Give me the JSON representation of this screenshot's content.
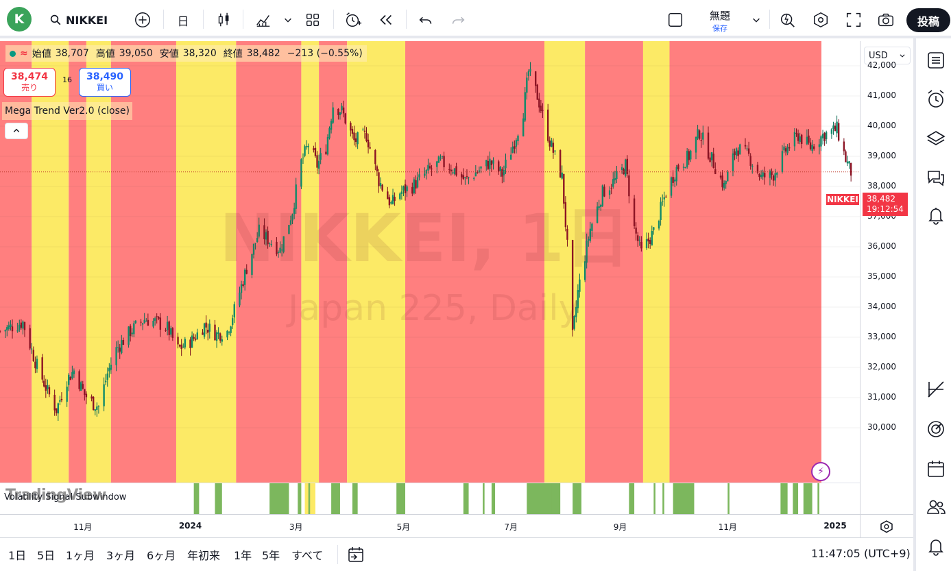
{
  "topbar": {
    "avatar_letter": "K",
    "symbol": "NIKKEI",
    "interval": "日",
    "save_title": "無題",
    "save_sub": "保存",
    "publish": "投稿"
  },
  "legend": {
    "open_label": "始値",
    "open": "38,707",
    "high_label": "高値",
    "high": "39,050",
    "low_label": "安値",
    "low": "38,320",
    "close_label": "終値",
    "close": "38,482",
    "change": "−213 (−0.55%)",
    "sell_price": "38,474",
    "sell_label": "売り",
    "buy_price": "38,490",
    "buy_label": "買い",
    "spread": "16",
    "indicator": "Mega Trend Ver2.0 (close)"
  },
  "watermark": {
    "line1": "NIKKEI, 1日",
    "line2": "Japan 225, Daily"
  },
  "subpane": {
    "title": "Volatility Signal Subwindow",
    "logo": "TradingView"
  },
  "price_axis": {
    "currency": "USD",
    "ticks": [
      "42,000",
      "41,000",
      "40,000",
      "39,000",
      "38,000",
      "37,000",
      "36,000",
      "35,000",
      "34,000",
      "33,000",
      "32,000",
      "31,000",
      "30,000"
    ],
    "symbol_tag": "NIKKEI",
    "last_price": "38,482",
    "countdown": "19:12:54"
  },
  "time_axis": {
    "ticks": [
      {
        "label": "11月",
        "bold": false
      },
      {
        "label": "2024",
        "bold": true
      },
      {
        "label": "3月",
        "bold": false
      },
      {
        "label": "5月",
        "bold": false
      },
      {
        "label": "7月",
        "bold": false
      },
      {
        "label": "9月",
        "bold": false
      },
      {
        "label": "11月",
        "bold": false
      },
      {
        "label": "2025",
        "bold": true
      }
    ]
  },
  "bottombar": {
    "ranges": [
      "1日",
      "5日",
      "1ヶ月",
      "3ヶ月",
      "6ヶ月",
      "年初来",
      "1年",
      "5年",
      "すべて"
    ],
    "clock": "11:47:05 (UTC+9)"
  },
  "colors": {
    "red_zone": "#ff7f7f",
    "yellow_zone": "#fcea66",
    "signal_green": "#7cb75d",
    "up": "#089981",
    "down": "#f23645"
  },
  "chart_data": {
    "type": "candlestick",
    "symbol": "NIKKEI",
    "xlim": [
      "2023-09-15",
      "2025-01-15"
    ],
    "ylim": [
      29300,
      43000
    ],
    "zones": [
      {
        "from": "2023-09-15",
        "to": "2023-10-03",
        "color": "red"
      },
      {
        "from": "2023-10-03",
        "to": "2023-10-24",
        "color": "yellow"
      },
      {
        "from": "2023-10-24",
        "to": "2023-11-03",
        "color": "red"
      },
      {
        "from": "2023-11-03",
        "to": "2023-11-17",
        "color": "yellow"
      },
      {
        "from": "2023-11-17",
        "to": "2023-12-24",
        "color": "red"
      },
      {
        "from": "2023-12-24",
        "to": "2024-01-27",
        "color": "yellow"
      },
      {
        "from": "2024-01-27",
        "to": "2024-03-04",
        "color": "red"
      },
      {
        "from": "2024-03-04",
        "to": "2024-03-14",
        "color": "yellow"
      },
      {
        "from": "2024-03-14",
        "to": "2024-03-30",
        "color": "red"
      },
      {
        "from": "2024-03-30",
        "to": "2024-05-02",
        "color": "yellow"
      },
      {
        "from": "2024-05-02",
        "to": "2024-07-20",
        "color": "red"
      },
      {
        "from": "2024-07-20",
        "to": "2024-08-12",
        "color": "yellow"
      },
      {
        "from": "2024-08-12",
        "to": "2024-09-14",
        "color": "red"
      },
      {
        "from": "2024-09-14",
        "to": "2024-09-29",
        "color": "yellow"
      },
      {
        "from": "2024-09-29",
        "to": "2025-01-10",
        "color": "red"
      }
    ],
    "close_path": [
      [
        "2023-09-15",
        33200
      ],
      [
        "2023-09-28",
        33500
      ],
      [
        "2023-10-05",
        32200
      ],
      [
        "2023-10-12",
        31200
      ],
      [
        "2023-10-17",
        30600
      ],
      [
        "2023-10-23",
        31600
      ],
      [
        "2023-10-27",
        31900
      ],
      [
        "2023-11-02",
        31100
      ],
      [
        "2023-11-07",
        30800
      ],
      [
        "2023-11-10",
        30700
      ],
      [
        "2023-11-15",
        31800
      ],
      [
        "2023-11-20",
        32600
      ],
      [
        "2023-11-28",
        33200
      ],
      [
        "2023-12-06",
        33600
      ],
      [
        "2023-12-13",
        33500
      ],
      [
        "2023-12-19",
        33300
      ],
      [
        "2023-12-25",
        32600
      ],
      [
        "2024-01-02",
        32900
      ],
      [
        "2024-01-09",
        33400
      ],
      [
        "2024-01-16",
        33100
      ],
      [
        "2024-01-22",
        33200
      ],
      [
        "2024-01-26",
        33900
      ],
      [
        "2024-02-02",
        35300
      ],
      [
        "2024-02-09",
        36500
      ],
      [
        "2024-02-15",
        36200
      ],
      [
        "2024-02-21",
        35900
      ],
      [
        "2024-02-28",
        37200
      ],
      [
        "2024-03-04",
        38800
      ],
      [
        "2024-03-08",
        39400
      ],
      [
        "2024-03-13",
        38700
      ],
      [
        "2024-03-18",
        39300
      ],
      [
        "2024-03-22",
        40700
      ],
      [
        "2024-03-27",
        40500
      ],
      [
        "2024-04-03",
        39500
      ],
      [
        "2024-04-10",
        39700
      ],
      [
        "2024-04-17",
        38200
      ],
      [
        "2024-04-24",
        37400
      ],
      [
        "2024-04-29",
        37800
      ],
      [
        "2024-05-06",
        38000
      ],
      [
        "2024-05-15",
        38500
      ],
      [
        "2024-05-22",
        38800
      ],
      [
        "2024-05-29",
        38600
      ],
      [
        "2024-06-05",
        38200
      ],
      [
        "2024-06-12",
        38500
      ],
      [
        "2024-06-19",
        38800
      ],
      [
        "2024-06-26",
        38400
      ],
      [
        "2024-07-03",
        39500
      ],
      [
        "2024-07-08",
        40500
      ],
      [
        "2024-07-11",
        41800
      ],
      [
        "2024-07-16",
        41000
      ],
      [
        "2024-07-23",
        39500
      ],
      [
        "2024-07-30",
        38300
      ],
      [
        "2024-08-02",
        36000
      ],
      [
        "2024-08-05",
        33000
      ],
      [
        "2024-08-08",
        34500
      ],
      [
        "2024-08-15",
        36600
      ],
      [
        "2024-08-22",
        37800
      ],
      [
        "2024-08-29",
        38200
      ],
      [
        "2024-09-04",
        38700
      ],
      [
        "2024-09-09",
        36600
      ],
      [
        "2024-09-13",
        35800
      ],
      [
        "2024-09-20",
        36500
      ],
      [
        "2024-09-27",
        37800
      ],
      [
        "2024-10-03",
        38600
      ],
      [
        "2024-10-10",
        39000
      ],
      [
        "2024-10-16",
        39800
      ],
      [
        "2024-10-23",
        38900
      ],
      [
        "2024-10-30",
        38000
      ],
      [
        "2024-11-06",
        39300
      ],
      [
        "2024-11-13",
        39000
      ],
      [
        "2024-11-20",
        38300
      ],
      [
        "2024-11-27",
        38400
      ],
      [
        "2024-12-04",
        39200
      ],
      [
        "2024-12-11",
        39700
      ],
      [
        "2024-12-18",
        39300
      ],
      [
        "2024-12-25",
        39700
      ],
      [
        "2025-01-02",
        39900
      ],
      [
        "2025-01-07",
        38900
      ],
      [
        "2025-01-10",
        38482
      ]
    ],
    "signal_bars_from": [
      "2024-01-03",
      "2024-01-15",
      "2024-02-15",
      "2024-03-02",
      "2024-03-08",
      "2024-03-21",
      "2024-04-02",
      "2024-04-27",
      "2024-06-04",
      "2024-06-15",
      "2024-06-20",
      "2024-07-10",
      "2024-07-23",
      "2024-08-05",
      "2024-09-06",
      "2024-09-20",
      "2024-09-25",
      "2024-10-01",
      "2024-11-01",
      "2024-12-01",
      "2024-12-08",
      "2024-12-14",
      "2024-12-22"
    ],
    "signal_bars_to": [
      "2024-01-06",
      "2024-01-19",
      "2024-02-26",
      "2024-03-04",
      "2024-03-09",
      "2024-03-26",
      "2024-04-05",
      "2024-05-02",
      "2024-06-07",
      "2024-06-16",
      "2024-06-22",
      "2024-07-29",
      "2024-07-24",
      "2024-08-10",
      "2024-09-09",
      "2024-09-21",
      "2024-09-26",
      "2024-10-13",
      "2024-11-02",
      "2024-12-05",
      "2024-12-11",
      "2024-12-19",
      "2024-12-23"
    ]
  }
}
